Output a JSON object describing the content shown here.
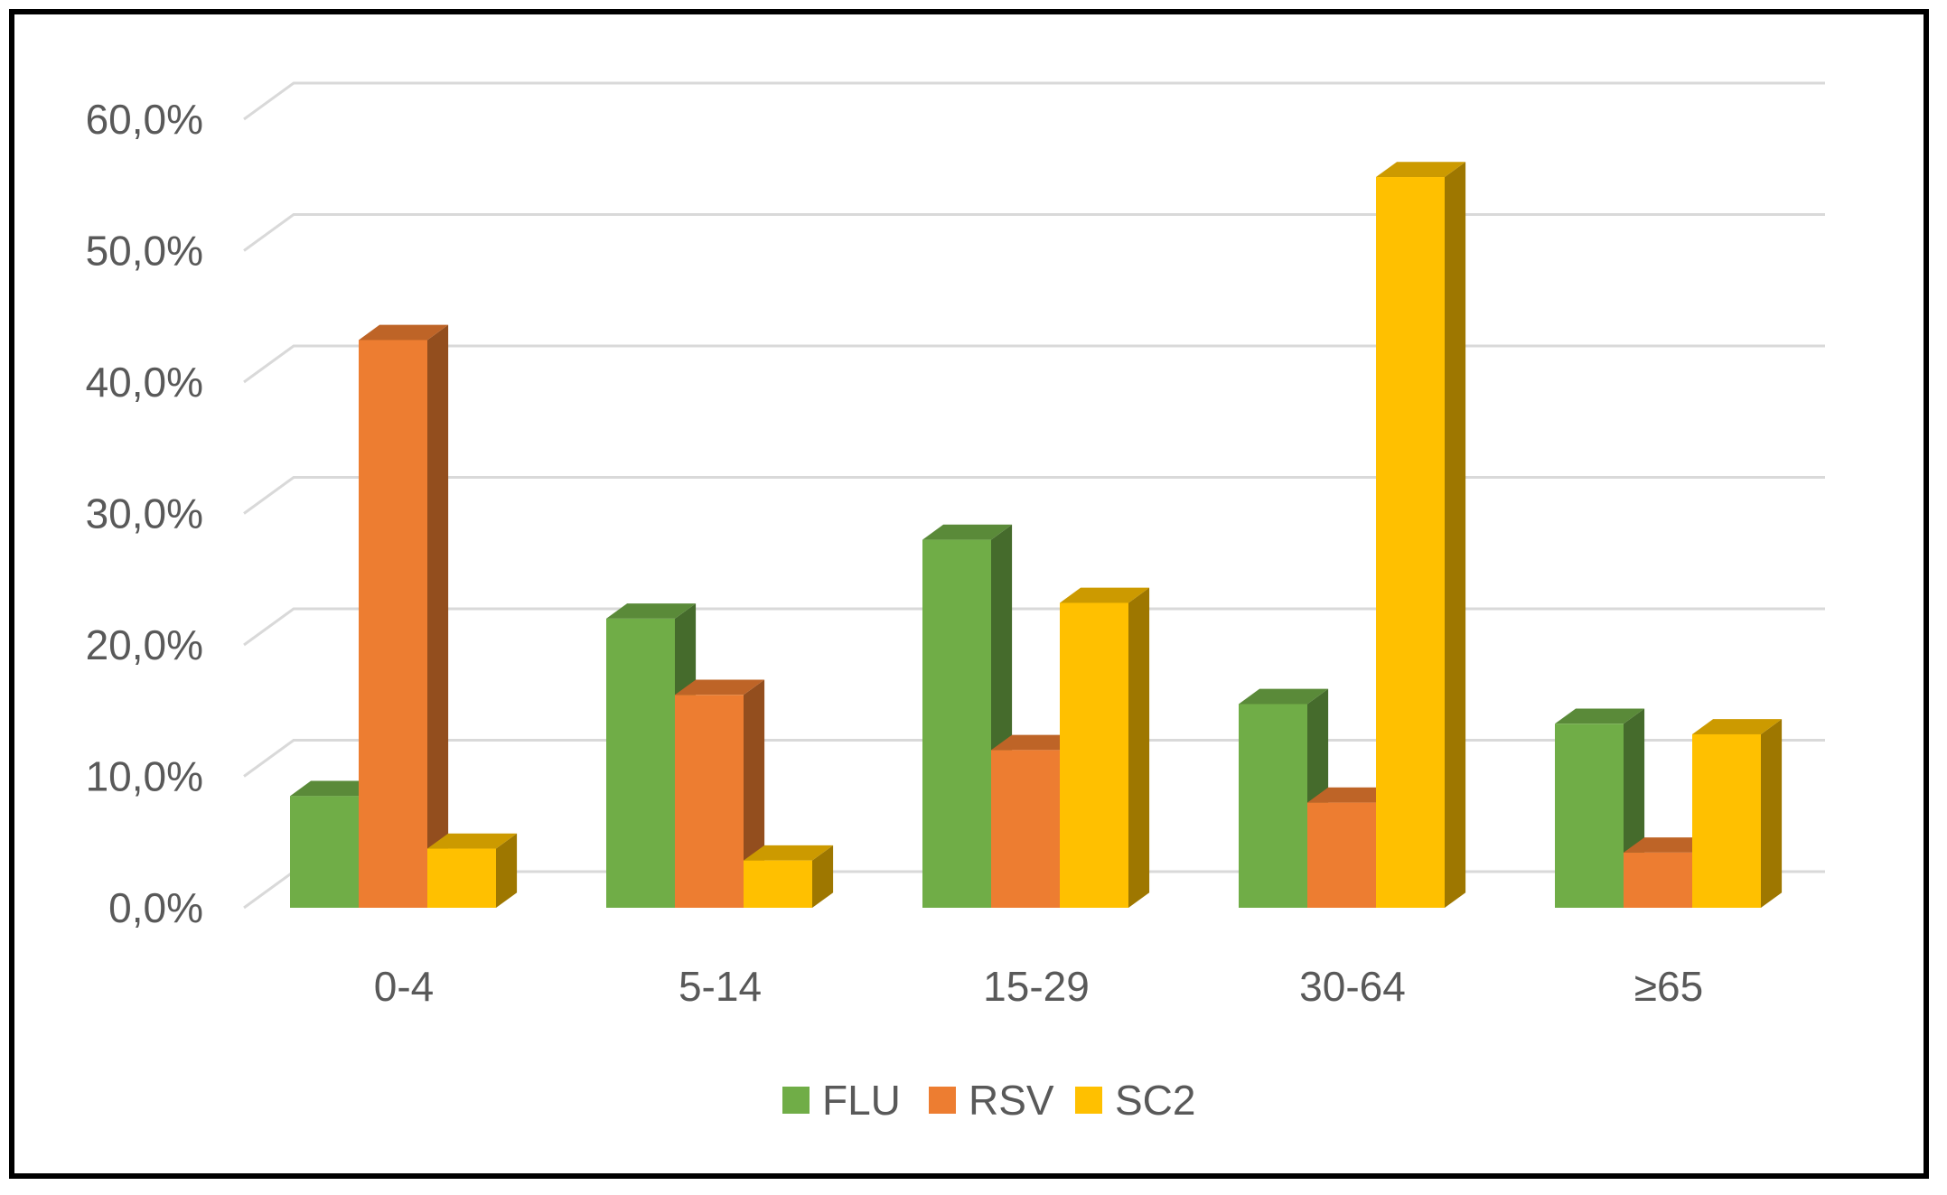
{
  "chart_data": {
    "type": "bar",
    "style": "3d-clustered-column",
    "title": "",
    "xlabel": "",
    "ylabel": "",
    "categories": [
      "0-4",
      "5-14",
      "15-29",
      "30-64",
      "≥65"
    ],
    "series": [
      {
        "name": "FLU",
        "color": "#70AD47",
        "values": [
          8.5,
          22.0,
          28.0,
          15.5,
          14.0
        ]
      },
      {
        "name": "RSV",
        "color": "#ED7D31",
        "values": [
          43.2,
          16.2,
          12.0,
          8.0,
          4.2
        ]
      },
      {
        "name": "SC2",
        "color": "#FFC000",
        "values": [
          4.5,
          3.6,
          23.2,
          55.6,
          13.2
        ]
      }
    ],
    "ylim": [
      0,
      60
    ],
    "yticks": [
      "0,0%",
      "10,0%",
      "20,0%",
      "30,0%",
      "40,0%",
      "50,0%",
      "60,0%"
    ],
    "grid": true,
    "legend_position": "bottom",
    "legend": [
      "FLU",
      "RSV",
      "SC2"
    ]
  }
}
